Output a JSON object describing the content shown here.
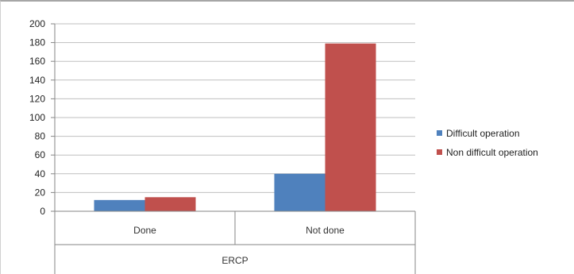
{
  "chart_data": {
    "type": "bar",
    "categories": [
      "Done",
      "Not done"
    ],
    "group_label": "ERCP",
    "series": [
      {
        "name": "Difficult operation",
        "values": [
          12,
          40
        ],
        "color": "#4f81bd"
      },
      {
        "name": "Non difficult operation",
        "values": [
          15,
          179
        ],
        "color": "#c0504d"
      }
    ],
    "ylim": [
      0,
      200
    ],
    "yticks": [
      0,
      20,
      40,
      60,
      80,
      100,
      120,
      140,
      160,
      180,
      200
    ],
    "grid": true,
    "legend_position": "right"
  }
}
